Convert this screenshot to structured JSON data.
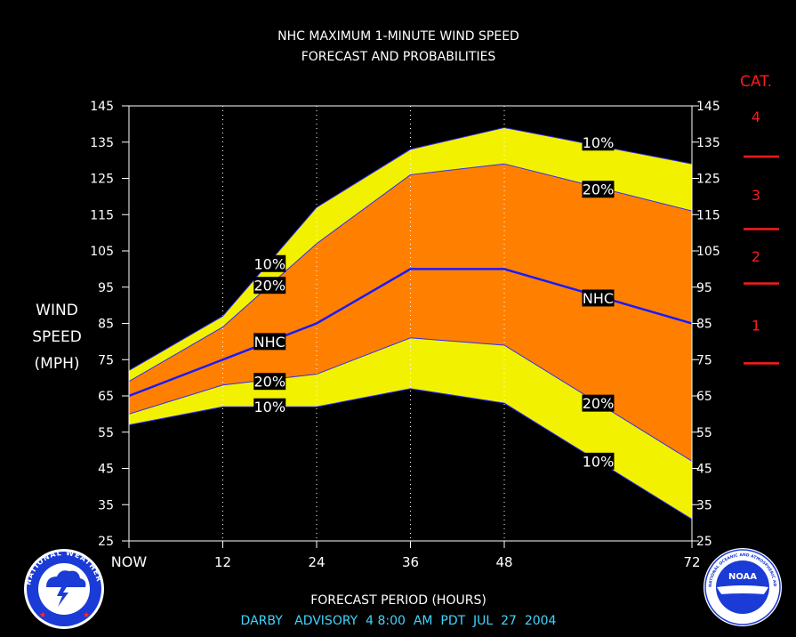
{
  "chart_data": {
    "type": "area",
    "title": "NHC MAXIMUM 1-MINUTE WIND SPEED",
    "subtitle": "FORECAST AND PROBABILITIES",
    "ylabel": [
      "WIND",
      "SPEED",
      "(MPH)"
    ],
    "xlabel": "FORECAST PERIOD (HOURS)",
    "footer": "DARBY   ADVISORY  4 8:00  AM  PDT  JUL  27  2004",
    "ylim": [
      25,
      145
    ],
    "yticks": [
      25,
      35,
      45,
      55,
      65,
      75,
      85,
      95,
      105,
      115,
      125,
      135,
      145
    ],
    "xlim": [
      0,
      72
    ],
    "x": [
      0,
      12,
      24,
      36,
      48,
      72
    ],
    "x_tick_labels": [
      "NOW",
      "12",
      "24",
      "36",
      "48",
      "72"
    ],
    "grid_x": true,
    "series": [
      {
        "name": "NHC",
        "values": [
          65,
          75,
          85,
          100,
          100,
          85
        ]
      }
    ],
    "bands": [
      {
        "name": "10%",
        "upper": [
          72,
          87,
          117,
          133,
          139,
          129
        ],
        "lower": [
          57,
          62,
          62,
          67,
          63,
          31
        ]
      },
      {
        "name": "20%",
        "upper": [
          69,
          84,
          107,
          126,
          129,
          116
        ],
        "lower": [
          60,
          68,
          71,
          81,
          79,
          47
        ]
      }
    ],
    "band_labels": [
      {
        "text": "10%",
        "x": 18,
        "y": 101.5
      },
      {
        "text": "20%",
        "x": 18,
        "y": 95.5
      },
      {
        "text": "NHC",
        "x": 18,
        "y": 80
      },
      {
        "text": "20%",
        "x": 18,
        "y": 69
      },
      {
        "text": "10%",
        "x": 18,
        "y": 62
      },
      {
        "text": "10%",
        "x": 60,
        "y": 135
      },
      {
        "text": "20%",
        "x": 60,
        "y": 122
      },
      {
        "text": "NHC",
        "x": 60,
        "y": 92
      },
      {
        "text": "20%",
        "x": 60,
        "y": 63
      },
      {
        "text": "10%",
        "x": 60,
        "y": 47
      }
    ],
    "categories_scale": {
      "title": "CAT.",
      "labels": [
        {
          "text": "4",
          "y": 142
        },
        {
          "text": "3",
          "y": 120.5
        },
        {
          "text": "2",
          "y": 103.5
        },
        {
          "text": "1",
          "y": 84.5
        }
      ],
      "boundaries": [
        131,
        111,
        96,
        74
      ]
    },
    "colors": {
      "outer_band": "#f2f200",
      "inner_band": "#ff8000",
      "nhc_line": "#1a1aff",
      "background": "#000000",
      "text": "#ffffff",
      "category": "#ff1a1a",
      "footer": "#3fd6ff"
    }
  },
  "logos": {
    "nws": {
      "text": "NATIONAL WEATHER SERVICE"
    },
    "noaa": {
      "text": "NOAA",
      "ring_text": "NATIONAL OCEANIC AND ATMOSPHERIC ADMINISTRATION · U.S. DEPARTMENT OF COMMERCE"
    }
  }
}
